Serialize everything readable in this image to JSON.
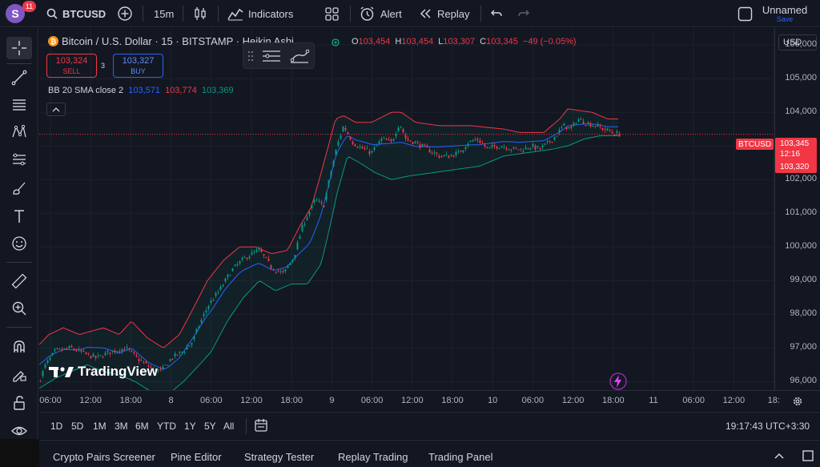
{
  "header": {
    "avatar_letter": "S",
    "notifications": "11",
    "symbol": "BTCUSD",
    "interval": "15m",
    "indicators_label": "Indicators",
    "alert_label": "Alert",
    "replay_label": "Replay",
    "layout_name": "Unnamed",
    "save_label": "Save"
  },
  "legend": {
    "title": "Bitcoin / U.S. Dollar · 15 · BITSTAMP · Heikin Ashi",
    "coin_glyph": "₿",
    "ohlc": [
      {
        "k": "O",
        "v": "103,454"
      },
      {
        "k": "H",
        "v": "103,454"
      },
      {
        "k": "L",
        "v": "103,307"
      },
      {
        "k": "C",
        "v": "103,345"
      },
      {
        "k": "",
        "v": "−49 (−0.05%)"
      }
    ],
    "sell_price": "103,324",
    "sell_label": "SELL",
    "spread": "3",
    "buy_price": "103,327",
    "buy_label": "BUY",
    "indicator_name": "BB 20 SMA close 2",
    "indicator_values": [
      "103,571",
      "103,774",
      "103,369"
    ],
    "indicator_colors": [
      "#2962ff",
      "#f23645",
      "#089981"
    ]
  },
  "price_axis": {
    "currency": "USD",
    "ticks": [
      "106,000",
      "105,000",
      "104,000",
      "103,000",
      "102,000",
      "101,000",
      "100,000",
      "99,000",
      "98,000",
      "97,000",
      "96,000"
    ],
    "symbol_tag": "BTCUSD",
    "last_price": "103,345",
    "countdown": "12:16",
    "bid_price": "103,320"
  },
  "time_axis": {
    "ticks": [
      "06:00",
      "12:00",
      "18:00",
      "8",
      "06:00",
      "12:00",
      "18:00",
      "9",
      "06:00",
      "12:00",
      "18:00",
      "10",
      "06:00",
      "12:00",
      "18:00",
      "11",
      "06:00",
      "12:00",
      "18:"
    ]
  },
  "watermark": "TradingView",
  "ranges": [
    "1D",
    "5D",
    "1M",
    "3M",
    "6M",
    "YTD",
    "1Y",
    "5Y",
    "All"
  ],
  "clock": "19:17:43 UTC+3:30",
  "bottom_tabs": [
    "Crypto Pairs Screener",
    "Pine Editor",
    "Strategy Tester",
    "Replay Trading",
    "Trading Panel"
  ],
  "colors": {
    "up": "#089981",
    "down": "#f23645",
    "basis": "#2962ff",
    "upper": "#f23645",
    "lower": "#089981"
  },
  "chart_data": {
    "type": "candlestick",
    "style": "Heikin Ashi",
    "ylim": [
      95750,
      106500
    ],
    "anchors": [
      [
        0,
        96000
      ],
      [
        8,
        96500
      ],
      [
        20,
        96900
      ],
      [
        40,
        97000
      ],
      [
        60,
        96800
      ],
      [
        72,
        96700
      ],
      [
        90,
        96900
      ],
      [
        108,
        97000
      ],
      [
        122,
        96700
      ],
      [
        140,
        96400
      ],
      [
        152,
        96300
      ],
      [
        165,
        96700
      ],
      [
        180,
        96900
      ],
      [
        192,
        97200
      ],
      [
        200,
        97700
      ],
      [
        212,
        98300
      ],
      [
        225,
        98700
      ],
      [
        240,
        99300
      ],
      [
        258,
        99700
      ],
      [
        275,
        99900
      ],
      [
        290,
        99400
      ],
      [
        305,
        99200
      ],
      [
        318,
        99700
      ],
      [
        330,
        100700
      ],
      [
        345,
        101400
      ],
      [
        355,
        101200
      ],
      [
        365,
        102300
      ],
      [
        372,
        103000
      ],
      [
        380,
        103600
      ],
      [
        392,
        103100
      ],
      [
        405,
        102900
      ],
      [
        415,
        102800
      ],
      [
        428,
        103200
      ],
      [
        440,
        103100
      ],
      [
        450,
        103700
      ],
      [
        458,
        103200
      ],
      [
        470,
        103100
      ],
      [
        485,
        102900
      ],
      [
        500,
        102700
      ],
      [
        512,
        102700
      ],
      [
        525,
        102800
      ],
      [
        535,
        103100
      ],
      [
        548,
        103200
      ],
      [
        560,
        102900
      ],
      [
        570,
        103000
      ],
      [
        580,
        103000
      ],
      [
        592,
        102900
      ],
      [
        605,
        102900
      ],
      [
        615,
        103000
      ],
      [
        625,
        102900
      ],
      [
        636,
        103100
      ],
      [
        645,
        103300
      ],
      [
        655,
        103600
      ],
      [
        665,
        103500
      ],
      [
        672,
        103800
      ],
      [
        682,
        103700
      ],
      [
        695,
        103600
      ],
      [
        705,
        103500
      ],
      [
        716,
        103400
      ],
      [
        724,
        103350
      ]
    ],
    "bb_upper_anchors": [
      [
        0,
        97100
      ],
      [
        12,
        97400
      ],
      [
        30,
        97600
      ],
      [
        50,
        97400
      ],
      [
        80,
        97600
      ],
      [
        100,
        97400
      ],
      [
        115,
        97800
      ],
      [
        135,
        97300
      ],
      [
        155,
        97000
      ],
      [
        175,
        97400
      ],
      [
        195,
        98300
      ],
      [
        210,
        99000
      ],
      [
        230,
        99600
      ],
      [
        250,
        100000
      ],
      [
        270,
        100000
      ],
      [
        290,
        99800
      ],
      [
        310,
        99900
      ],
      [
        325,
        100600
      ],
      [
        340,
        101200
      ],
      [
        352,
        102200
      ],
      [
        360,
        102900
      ],
      [
        370,
        103800
      ],
      [
        380,
        103900
      ],
      [
        395,
        103700
      ],
      [
        415,
        103700
      ],
      [
        440,
        104000
      ],
      [
        452,
        104000
      ],
      [
        470,
        103700
      ],
      [
        500,
        103600
      ],
      [
        540,
        103600
      ],
      [
        580,
        103500
      ],
      [
        600,
        103400
      ],
      [
        630,
        103400
      ],
      [
        650,
        103800
      ],
      [
        660,
        104100
      ],
      [
        690,
        104000
      ],
      [
        710,
        103800
      ],
      [
        725,
        103800
      ]
    ],
    "bb_lower_anchors": [
      [
        0,
        95800
      ],
      [
        20,
        96100
      ],
      [
        40,
        96300
      ],
      [
        60,
        96500
      ],
      [
        80,
        96300
      ],
      [
        100,
        96200
      ],
      [
        120,
        96000
      ],
      [
        140,
        95700
      ],
      [
        160,
        95600
      ],
      [
        180,
        96000
      ],
      [
        200,
        96500
      ],
      [
        215,
        96900
      ],
      [
        235,
        97800
      ],
      [
        255,
        98500
      ],
      [
        275,
        99000
      ],
      [
        295,
        98700
      ],
      [
        315,
        98900
      ],
      [
        335,
        98900
      ],
      [
        352,
        99500
      ],
      [
        362,
        100500
      ],
      [
        372,
        101600
      ],
      [
        385,
        102700
      ],
      [
        400,
        102500
      ],
      [
        420,
        102200
      ],
      [
        440,
        102000
      ],
      [
        460,
        102100
      ],
      [
        490,
        102200
      ],
      [
        520,
        102300
      ],
      [
        550,
        102400
      ],
      [
        580,
        102700
      ],
      [
        610,
        102800
      ],
      [
        640,
        102900
      ],
      [
        660,
        103000
      ],
      [
        680,
        103200
      ],
      [
        700,
        103300
      ],
      [
        725,
        103300
      ]
    ]
  }
}
